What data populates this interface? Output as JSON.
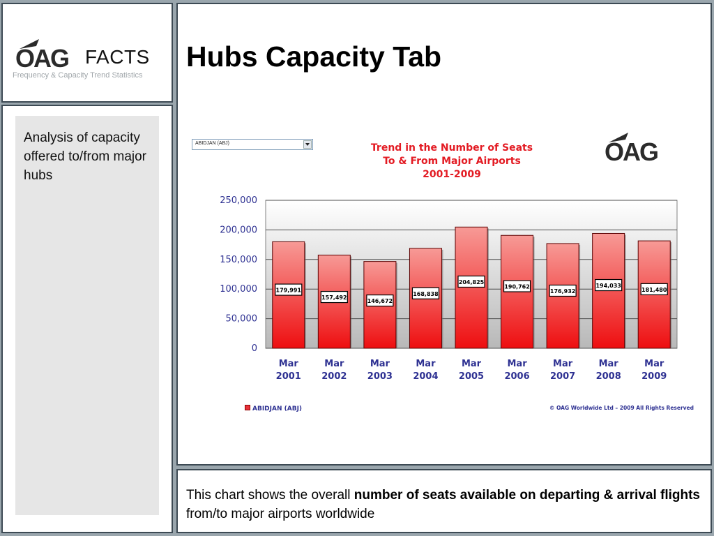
{
  "brand": {
    "logo_text": "OAG",
    "facts": "FACTS",
    "tagline": "Frequency & Capacity Trend Statistics"
  },
  "sidebar": {
    "text": "Analysis of capacity offered to/from major hubs"
  },
  "page": {
    "title": "Hubs Capacity Tab"
  },
  "airport_select": {
    "value": "ABIDJAN (ABJ)"
  },
  "chart_data": {
    "type": "bar",
    "title": "Trend in the Number of Seats",
    "title_line2": "To & From Major Airports",
    "title_line3": "2001-2009",
    "categories": [
      [
        "Mar",
        "2001"
      ],
      [
        "Mar",
        "2002"
      ],
      [
        "Mar",
        "2003"
      ],
      [
        "Mar",
        "2004"
      ],
      [
        "Mar",
        "2005"
      ],
      [
        "Mar",
        "2006"
      ],
      [
        "Mar",
        "2007"
      ],
      [
        "Mar",
        "2008"
      ],
      [
        "Mar",
        "2009"
      ]
    ],
    "series": [
      {
        "name": "ABIDJAN (ABJ)",
        "values": [
          179991,
          157492,
          146672,
          168838,
          204825,
          190762,
          176932,
          194033,
          181480
        ]
      }
    ],
    "data_labels": [
      "179,991",
      "157,492",
      "146,672",
      "168,838",
      "204,825",
      "190,762",
      "176,932",
      "194,033",
      "181,480"
    ],
    "yticks": [
      "0",
      "50,000",
      "100,000",
      "150,000",
      "200,000",
      "250,000"
    ],
    "ylim": [
      0,
      250000
    ],
    "grid": true,
    "legend_position": "bottom-left",
    "bar_color": "#e8323a"
  },
  "chart_footer": {
    "copyright": "© OAG Worldwide Ltd – 2009 All Rights Reserved"
  },
  "footer": {
    "text_a": "This chart shows the overall ",
    "text_b": "number of seats available on departing & arrival flights",
    "text_c": " from/to major airports worldwide"
  }
}
